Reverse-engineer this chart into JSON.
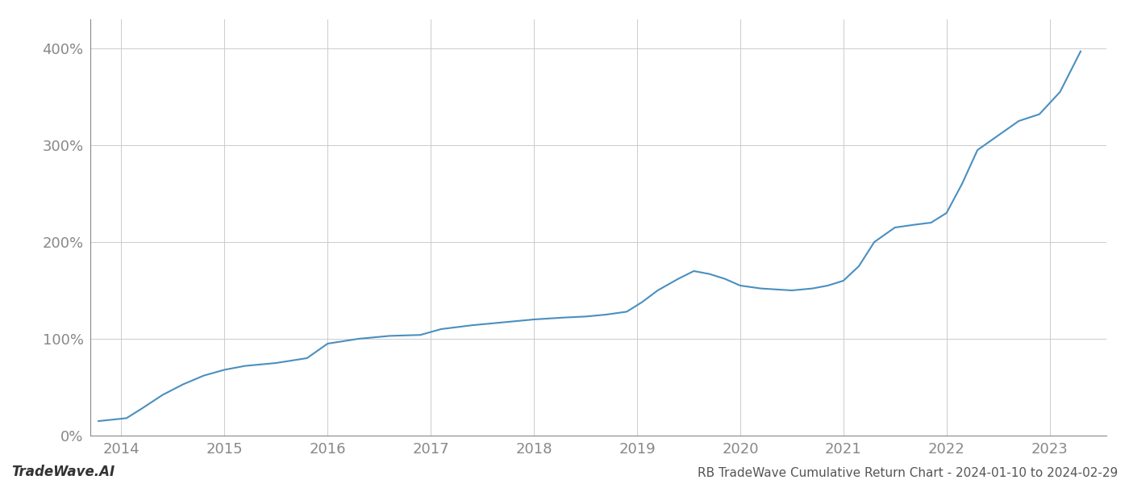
{
  "title": "RB TradeWave Cumulative Return Chart - 2024-01-10 to 2024-02-29",
  "watermark": "TradeWave.AI",
  "line_color": "#4a8fc0",
  "background_color": "#ffffff",
  "grid_color": "#cccccc",
  "x_years": [
    2014,
    2015,
    2016,
    2017,
    2018,
    2019,
    2020,
    2021,
    2022,
    2023
  ],
  "x_data": [
    2013.78,
    2014.05,
    2014.2,
    2014.4,
    2014.6,
    2014.8,
    2015.0,
    2015.2,
    2015.5,
    2015.8,
    2016.0,
    2016.3,
    2016.6,
    2016.9,
    2017.1,
    2017.4,
    2017.7,
    2018.0,
    2018.15,
    2018.3,
    2018.5,
    2018.7,
    2018.9,
    2019.05,
    2019.2,
    2019.4,
    2019.55,
    2019.7,
    2019.85,
    2020.0,
    2020.2,
    2020.5,
    2020.7,
    2020.85,
    2021.0,
    2021.15,
    2021.3,
    2021.5,
    2021.7,
    2021.85,
    2022.0,
    2022.15,
    2022.3,
    2022.5,
    2022.7,
    2022.9,
    2023.1,
    2023.3
  ],
  "y_data": [
    15,
    18,
    28,
    42,
    53,
    62,
    68,
    72,
    75,
    80,
    95,
    100,
    103,
    104,
    110,
    114,
    117,
    120,
    121,
    122,
    123,
    125,
    128,
    138,
    150,
    162,
    170,
    167,
    162,
    155,
    152,
    150,
    152,
    155,
    160,
    175,
    200,
    215,
    218,
    220,
    230,
    260,
    295,
    310,
    325,
    332,
    355,
    397
  ],
  "ylim": [
    0,
    430
  ],
  "yticks": [
    0,
    100,
    200,
    300,
    400
  ],
  "ytick_labels": [
    "0%",
    "100%",
    "200%",
    "300%",
    "400%"
  ],
  "xlim": [
    2013.7,
    2023.55
  ],
  "title_fontsize": 11,
  "watermark_fontsize": 12,
  "tick_fontsize": 13,
  "axis_color": "#888888",
  "title_color": "#555555",
  "watermark_color": "#333333"
}
